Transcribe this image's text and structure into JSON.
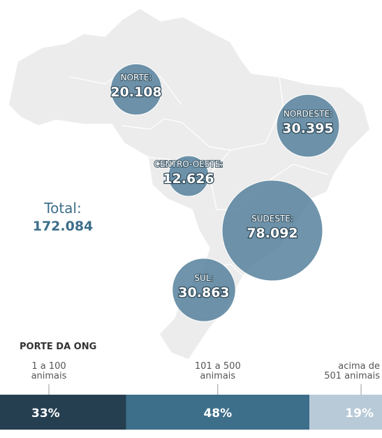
{
  "map": {
    "regions": [
      {
        "name": "NORTE:",
        "value": 20108,
        "value_label": "20.108"
      },
      {
        "name": "NORDESTE:",
        "value": 30395,
        "value_label": "30.395"
      },
      {
        "name": "CENTRO-OESTE:",
        "value": 12626,
        "value_label": "12.626"
      },
      {
        "name": "SUDESTE:",
        "value": 78092,
        "value_label": "78.092"
      },
      {
        "name": "SUL:",
        "value": 30863,
        "value_label": "30.863"
      }
    ],
    "total": {
      "label": "Total:",
      "value": 172084,
      "value_label": "172.084"
    }
  },
  "chart_data": {
    "type": "stacked-bar",
    "title": "PORTE DA ONG",
    "categories": [
      "1 a 100\nanimais",
      "101 a 500\nanimais",
      "acima de\n501 animais"
    ],
    "values": [
      33,
      48,
      19
    ],
    "value_labels": [
      "33%",
      "48%",
      "19%"
    ],
    "colors": [
      "#253f50",
      "#3d6e8a",
      "#b8cad7"
    ]
  }
}
